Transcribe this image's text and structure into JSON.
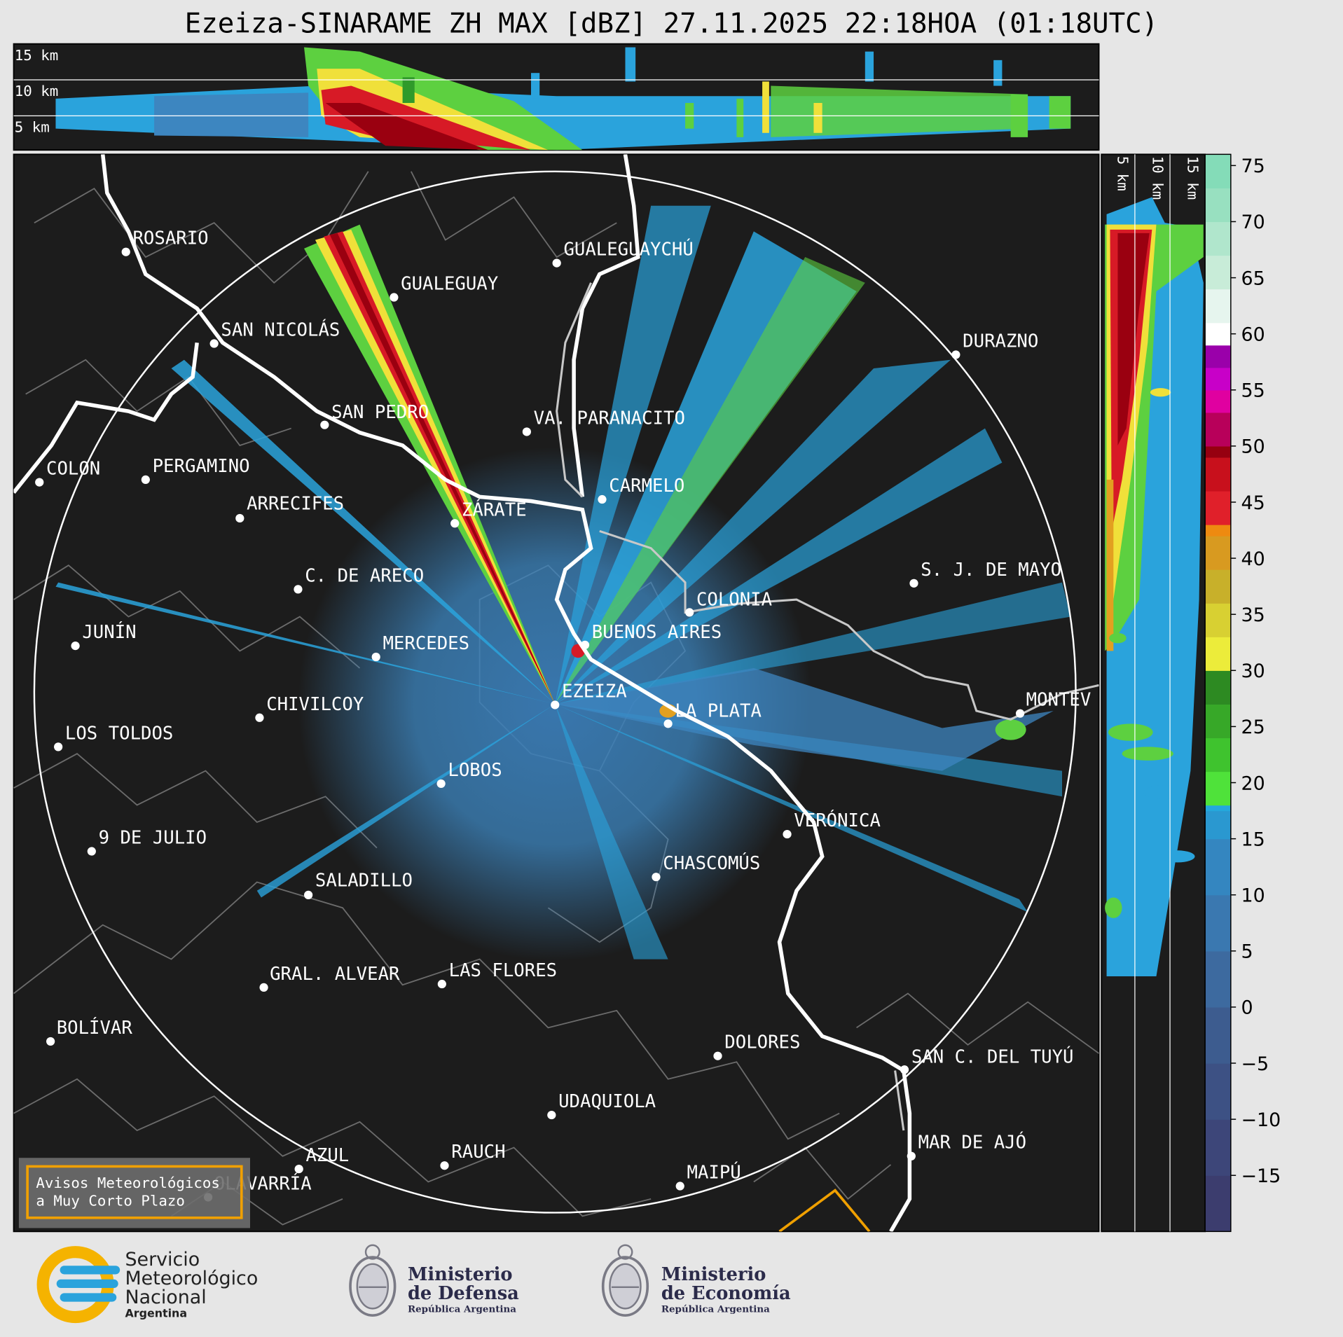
{
  "title": "Ezeiza-SINARAME ZH MAX [dBZ] 27.11.2025 22:18HOA (01:18UTC)",
  "height_labels_top": [
    "15 km",
    "10 km",
    "5 km"
  ],
  "height_labels_side": [
    "5 km",
    "10 km",
    "15 km"
  ],
  "colorbar": {
    "ticks": [
      "75",
      "70",
      "65",
      "60",
      "55",
      "50",
      "45",
      "40",
      "35",
      "30",
      "25",
      "20",
      "15",
      "10",
      "5",
      "0",
      "−5",
      "−10",
      "−15"
    ],
    "tick_values": [
      75,
      70,
      65,
      60,
      55,
      50,
      45,
      40,
      35,
      30,
      25,
      20,
      15,
      10,
      5,
      0,
      -5,
      -10,
      -15
    ],
    "range": [
      -20,
      76
    ]
  },
  "cities": [
    {
      "name": "ROSARIO"
    },
    {
      "name": "GUALEGUAYCHÚ"
    },
    {
      "name": "GUALEGUAY"
    },
    {
      "name": "SAN NICOLÁS"
    },
    {
      "name": "DURAZNO"
    },
    {
      "name": "SAN PEDRO"
    },
    {
      "name": "VA. PARANACITO"
    },
    {
      "name": "COLON"
    },
    {
      "name": "PERGAMINO"
    },
    {
      "name": "CARMELO"
    },
    {
      "name": "ARRECIFES"
    },
    {
      "name": "ZÁRATE"
    },
    {
      "name": "C. DE ARECO"
    },
    {
      "name": "S. J. DE MAYO"
    },
    {
      "name": "COLONIA"
    },
    {
      "name": "JUNÍN"
    },
    {
      "name": "BUENOS AIRES"
    },
    {
      "name": "MERCEDES"
    },
    {
      "name": "EZEIZA"
    },
    {
      "name": "MONTEV"
    },
    {
      "name": "CHIVILCOY"
    },
    {
      "name": "LA PLATA"
    },
    {
      "name": "LOS TOLDOS"
    },
    {
      "name": "LOBOS"
    },
    {
      "name": "VERÓNICA"
    },
    {
      "name": "9 DE JULIO"
    },
    {
      "name": "CHASCOMÚS"
    },
    {
      "name": "SALADILLO"
    },
    {
      "name": "GRAL. ALVEAR"
    },
    {
      "name": "LAS FLORES"
    },
    {
      "name": "BOLÍVAR"
    },
    {
      "name": "DOLORES"
    },
    {
      "name": "SAN C. DEL TUYÚ"
    },
    {
      "name": "UDAQUIOLA"
    },
    {
      "name": "MAR DE AJÓ"
    },
    {
      "name": "AZUL"
    },
    {
      "name": "RAUCH"
    },
    {
      "name": "MAIPÚ"
    },
    {
      "name": "OLAVARRÍA"
    }
  ],
  "warning_box": {
    "line1": "Avisos Meteorológicos",
    "line2": "a Muy Corto Plazo"
  },
  "logos": {
    "smn": {
      "line1": "Servicio",
      "line2": "Meteorológico",
      "line3": "Nacional",
      "line4": "Argentina"
    },
    "defensa": {
      "line1": "Ministerio",
      "line2": "de Defensa",
      "line3": "República Argentina"
    },
    "economia": {
      "line1": "Ministerio",
      "line2": "de Economía",
      "line3": "República Argentina"
    }
  },
  "colors": {
    "background": "#e6e6e6",
    "map": "#1c1c1c",
    "warning_border": "#f0a000",
    "smn_blue": "#2aa3dc",
    "smn_yellow": "#f5b300"
  }
}
